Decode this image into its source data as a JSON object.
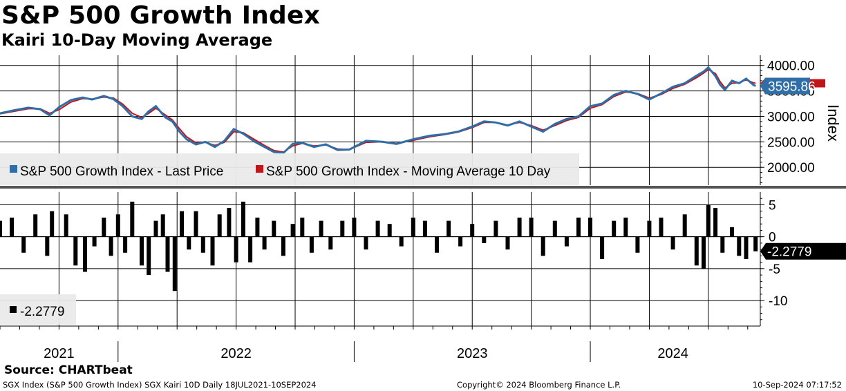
{
  "header": {
    "title": "S&P 500 Growth Index",
    "subtitle": "Kairi 10-Day Moving Average"
  },
  "footer": {
    "source": "Source: CHARTbeat",
    "left": "SGX Index (S&P 500 Growth Index) SGX Kairi 10D  Daily 18JUL2021-10SEP2024",
    "center": "Copyright© 2024 Bloomberg Finance L.P.",
    "right": "10-Sep-2024 07:17:52"
  },
  "colors": {
    "price": "#2f6ea6",
    "ma": "#c0151b",
    "kairi": "#000000",
    "last_box": "#2f6ea6",
    "legend_bg": "#eaeaea",
    "divider": "#555555"
  },
  "chart_data": [
    {
      "type": "line",
      "title": "S&P 500 Growth Index",
      "ylabel": "Index",
      "ylim": [
        1650,
        4200
      ],
      "y_ticks": [
        "4000.00",
        "3500.00",
        "3000.00",
        "2500.00",
        "2000.00"
      ],
      "y_tick_values": [
        4000,
        3500,
        3000,
        2500,
        2000
      ],
      "x_range": [
        2021.5,
        2024.72
      ],
      "x_labels": [
        "2021",
        "2022",
        "2023",
        "2024"
      ],
      "last_value_label": "3595.86",
      "legend": {
        "price": "S&P 500 Growth Index - Last Price",
        "ma": "S&P 500 Growth Index - Moving Average 10 Day"
      },
      "series": [
        {
          "name": "S&P 500 Growth Index - Last Price",
          "x": [
            2021.5,
            2021.56,
            2021.62,
            2021.67,
            2021.71,
            2021.75,
            2021.8,
            2021.85,
            2021.89,
            2021.94,
            2021.98,
            2022.02,
            2022.06,
            2022.1,
            2022.13,
            2022.16,
            2022.2,
            2022.23,
            2022.26,
            2022.29,
            2022.33,
            2022.37,
            2022.41,
            2022.45,
            2022.49,
            2022.53,
            2022.58,
            2022.62,
            2022.66,
            2022.7,
            2022.74,
            2022.78,
            2022.83,
            2022.88,
            2022.93,
            2022.98,
            2023.05,
            2023.12,
            2023.18,
            2023.25,
            2023.32,
            2023.38,
            2023.44,
            2023.5,
            2023.55,
            2023.6,
            2023.65,
            2023.7,
            2023.75,
            2023.8,
            2023.85,
            2023.9,
            2023.95,
            2024.0,
            2024.05,
            2024.1,
            2024.15,
            2024.2,
            2024.25,
            2024.3,
            2024.35,
            2024.4,
            2024.45,
            2024.48,
            2024.5,
            2024.53,
            2024.55,
            2024.57,
            2024.6,
            2024.63,
            2024.66,
            2024.69,
            2024.7
          ],
          "values": [
            3060,
            3120,
            3170,
            3140,
            3020,
            3180,
            3320,
            3370,
            3330,
            3400,
            3340,
            3200,
            3000,
            2950,
            3100,
            3200,
            2980,
            2900,
            2700,
            2550,
            2450,
            2500,
            2400,
            2520,
            2750,
            2660,
            2500,
            2400,
            2300,
            2280,
            2460,
            2480,
            2400,
            2450,
            2340,
            2350,
            2520,
            2500,
            2460,
            2550,
            2620,
            2650,
            2700,
            2800,
            2900,
            2880,
            2820,
            2900,
            2800,
            2700,
            2850,
            2950,
            3000,
            3200,
            3250,
            3420,
            3500,
            3440,
            3330,
            3450,
            3580,
            3650,
            3800,
            3880,
            3960,
            3790,
            3620,
            3520,
            3700,
            3650,
            3740,
            3620,
            3596
          ]
        },
        {
          "name": "S&P 500 Growth Index - Moving Average 10 Day",
          "x": [
            2021.5,
            2021.56,
            2021.62,
            2021.67,
            2021.71,
            2021.75,
            2021.8,
            2021.85,
            2021.89,
            2021.94,
            2021.98,
            2022.02,
            2022.06,
            2022.1,
            2022.13,
            2022.16,
            2022.2,
            2022.23,
            2022.26,
            2022.29,
            2022.33,
            2022.37,
            2022.41,
            2022.45,
            2022.49,
            2022.53,
            2022.58,
            2022.62,
            2022.66,
            2022.7,
            2022.74,
            2022.78,
            2022.83,
            2022.88,
            2022.93,
            2022.98,
            2023.05,
            2023.12,
            2023.18,
            2023.25,
            2023.32,
            2023.38,
            2023.44,
            2023.5,
            2023.55,
            2023.6,
            2023.65,
            2023.7,
            2023.75,
            2023.8,
            2023.85,
            2023.9,
            2023.95,
            2024.0,
            2024.05,
            2024.1,
            2024.15,
            2024.2,
            2024.25,
            2024.3,
            2024.35,
            2024.4,
            2024.45,
            2024.48,
            2024.5,
            2024.53,
            2024.55,
            2024.57,
            2024.6,
            2024.63,
            2024.66,
            2024.69,
            2024.7
          ],
          "values": [
            3050,
            3100,
            3150,
            3150,
            3060,
            3130,
            3280,
            3350,
            3340,
            3380,
            3360,
            3240,
            3060,
            2980,
            3060,
            3160,
            3030,
            2930,
            2760,
            2600,
            2480,
            2490,
            2430,
            2490,
            2700,
            2680,
            2540,
            2430,
            2330,
            2300,
            2420,
            2470,
            2420,
            2440,
            2360,
            2350,
            2490,
            2500,
            2470,
            2530,
            2600,
            2640,
            2690,
            2780,
            2880,
            2880,
            2830,
            2880,
            2820,
            2730,
            2820,
            2920,
            2980,
            3160,
            3230,
            3390,
            3480,
            3450,
            3360,
            3430,
            3550,
            3630,
            3760,
            3850,
            3920,
            3840,
            3680,
            3560,
            3650,
            3660,
            3720,
            3660,
            3650
          ]
        }
      ]
    },
    {
      "type": "bar",
      "title": "Kairi 10-Day Moving Average",
      "ylim": [
        -14,
        7
      ],
      "y_ticks": [
        "5",
        "0",
        "-5",
        "-10"
      ],
      "y_tick_values": [
        5,
        0,
        -5,
        -10
      ],
      "last_value_label": "-2.2779",
      "legend": {
        "kairi": "-2.2779"
      },
      "series": [
        {
          "name": "SGX Kairi 10D",
          "x": [
            2021.5,
            2021.55,
            2021.6,
            2021.65,
            2021.7,
            2021.72,
            2021.78,
            2021.82,
            2021.86,
            2021.9,
            2021.94,
            2021.97,
            2022.0,
            2022.03,
            2022.06,
            2022.1,
            2022.13,
            2022.16,
            2022.19,
            2022.21,
            2022.24,
            2022.27,
            2022.3,
            2022.33,
            2022.36,
            2022.4,
            2022.43,
            2022.47,
            2022.5,
            2022.53,
            2022.56,
            2022.59,
            2022.62,
            2022.66,
            2022.7,
            2022.74,
            2022.78,
            2022.82,
            2022.86,
            2022.9,
            2022.95,
            2023.0,
            2023.05,
            2023.1,
            2023.15,
            2023.2,
            2023.25,
            2023.3,
            2023.35,
            2023.4,
            2023.45,
            2023.5,
            2023.55,
            2023.6,
            2023.65,
            2023.7,
            2023.75,
            2023.8,
            2023.85,
            2023.9,
            2023.95,
            2024.0,
            2024.05,
            2024.1,
            2024.15,
            2024.2,
            2024.25,
            2024.3,
            2024.35,
            2024.4,
            2024.45,
            2024.48,
            2024.5,
            2024.53,
            2024.56,
            2024.6,
            2024.63,
            2024.66,
            2024.7
          ],
          "values": [
            2.5,
            3.0,
            -2.5,
            3.5,
            -3.0,
            4.0,
            3.5,
            -4.5,
            -5.5,
            -1.5,
            3.0,
            -3.0,
            3.5,
            -2.5,
            5.5,
            -4.5,
            -6.0,
            2.5,
            3.5,
            -5.5,
            -8.5,
            4.0,
            -2.0,
            4.0,
            -2.5,
            -4.5,
            3.5,
            4.5,
            -4.0,
            5.5,
            -4.0,
            3.0,
            -2.0,
            2.5,
            -3.0,
            2.0,
            3.0,
            -2.5,
            2.5,
            -2.0,
            2.5,
            3.0,
            -2.0,
            2.5,
            2.0,
            -1.5,
            3.0,
            2.5,
            -2.5,
            2.5,
            -1.5,
            2.0,
            -1.0,
            2.5,
            -2.0,
            3.0,
            3.0,
            -3.0,
            2.5,
            -1.5,
            3.0,
            3.0,
            -3.5,
            2.5,
            3.0,
            -2.5,
            2.5,
            3.0,
            -2.0,
            3.5,
            -4.5,
            -5.0,
            5.0,
            4.5,
            -2.5,
            1.5,
            -3.0,
            -3.5,
            -2.28
          ]
        }
      ]
    }
  ]
}
